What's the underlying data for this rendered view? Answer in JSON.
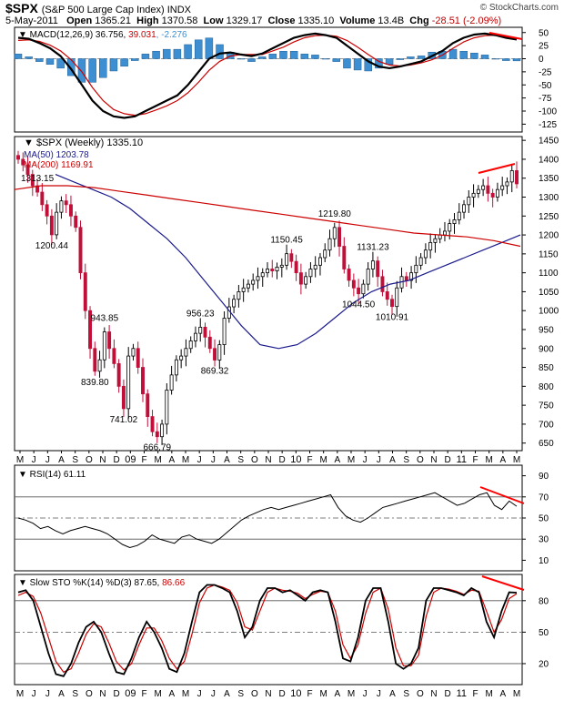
{
  "header": {
    "symbol": "$SPX",
    "name": "(S&P 500 Large Cap Index) INDX",
    "date": "5-May-2011",
    "open_label": "Open",
    "open": "1365.21",
    "high_label": "High",
    "high": "1370.58",
    "low_label": "Low",
    "low": "1329.17",
    "close_label": "Close",
    "close": "1335.10",
    "volume_label": "Volume",
    "volume": "13.4B",
    "chg_label": "Chg",
    "chg": "-28.51 (-2.09%)",
    "brand": "© StockCharts.com"
  },
  "colors": {
    "up": "#000000",
    "down": "#c0103a",
    "ma50": "#1a1a8c",
    "ma200": "#cc0000",
    "hist": "#3d8fd1",
    "trend": "#ff0000"
  },
  "chart_data": [
    {
      "type": "line",
      "panel": "macd",
      "label": "MACD(12,26,9) 36.756, 39.031, -2.276",
      "label_parts": [
        "MACD(12,26,9) 36.756,",
        "39.031",
        ", -2.276"
      ],
      "yticks": [
        50,
        25,
        0,
        -25,
        -50,
        -75,
        -100,
        -125
      ],
      "ylim": [
        -140,
        60
      ],
      "series": [
        {
          "name": "MACD",
          "values": [
            40,
            38,
            30,
            20,
            5,
            -20,
            -50,
            -80,
            -100,
            -110,
            -113,
            -110,
            -100,
            -90,
            -80,
            -70,
            -50,
            -25,
            0,
            10,
            12,
            8,
            5,
            10,
            20,
            30,
            40,
            45,
            48,
            45,
            40,
            25,
            10,
            -5,
            -15,
            -18,
            -15,
            -10,
            -5,
            5,
            15,
            30,
            40,
            46,
            48,
            45,
            40,
            36.756
          ]
        },
        {
          "name": "Signal",
          "values": [
            35,
            36,
            33,
            26,
            15,
            -2,
            -25,
            -55,
            -80,
            -97,
            -105,
            -108,
            -105,
            -98,
            -90,
            -80,
            -65,
            -45,
            -22,
            -5,
            5,
            8,
            8,
            8,
            15,
            22,
            32,
            40,
            44,
            45,
            43,
            35,
            22,
            8,
            -5,
            -12,
            -14,
            -12,
            -8,
            -2,
            7,
            20,
            32,
            40,
            44,
            45,
            42,
            39.031
          ]
        }
      ]
    },
    {
      "type": "candlestick",
      "panel": "price",
      "label": "$SPX (Weekly) 1335.10",
      "ma_labels": [
        "MA(50) 1203.78",
        "MA(200) 1169.91"
      ],
      "yticks": [
        1450,
        1400,
        1350,
        1300,
        1250,
        1200,
        1150,
        1100,
        1050,
        1000,
        950,
        900,
        850,
        800,
        750,
        700,
        650
      ],
      "ylim": [
        630,
        1460
      ],
      "xticks": [
        "M",
        "J",
        "J",
        "A",
        "S",
        "O",
        "N",
        "D",
        "09",
        "F",
        "M",
        "A",
        "M",
        "J",
        "J",
        "A",
        "S",
        "O",
        "N",
        "D",
        "10",
        "F",
        "M",
        "A",
        "M",
        "J",
        "J",
        "A",
        "S",
        "O",
        "N",
        "D",
        "11",
        "F",
        "M",
        "A",
        "M"
      ],
      "close_path": [
        1400,
        1385,
        1360,
        1330,
        1313.15,
        1280,
        1250,
        1200.44,
        1260,
        1290,
        1280,
        1250,
        1220,
        1100,
        1000,
        900,
        839.8,
        870,
        943.85,
        900,
        860,
        800,
        741.02,
        880,
        900,
        850,
        780,
        720,
        680,
        666.79,
        700,
        790,
        830,
        870,
        880,
        900,
        920,
        940,
        956.23,
        930,
        900,
        869.32,
        910,
        980,
        1010,
        1030,
        1050,
        1060,
        1070,
        1080,
        1090,
        1100,
        1110,
        1105,
        1115,
        1120,
        1150.45,
        1130,
        1100,
        1070,
        1090,
        1110,
        1120,
        1140,
        1160,
        1190,
        1219.8,
        1170,
        1110,
        1080,
        1060,
        1044.5,
        1070,
        1110,
        1131.23,
        1090,
        1050,
        1030,
        1010.91,
        1060,
        1090,
        1080,
        1100,
        1120,
        1140,
        1160,
        1180,
        1190,
        1200,
        1210,
        1230,
        1240,
        1260,
        1280,
        1300,
        1310,
        1320,
        1330,
        1310,
        1300,
        1320,
        1330,
        1340,
        1370,
        1335.1
      ],
      "annotations": [
        {
          "text": "1313.15",
          "x": 4,
          "y": 1313.15,
          "pos": "above"
        },
        {
          "text": "1200.44",
          "x": 7,
          "y": 1200.44,
          "pos": "below"
        },
        {
          "text": "839.80",
          "x": 16,
          "y": 839.8,
          "pos": "below"
        },
        {
          "text": "943.85",
          "x": 18,
          "y": 943.85,
          "pos": "above"
        },
        {
          "text": "741.02",
          "x": 22,
          "y": 741.02,
          "pos": "below"
        },
        {
          "text": "666.79",
          "x": 29,
          "y": 666.79,
          "pos": "below"
        },
        {
          "text": "956.23",
          "x": 38,
          "y": 956.23,
          "pos": "above"
        },
        {
          "text": "869.32",
          "x": 41,
          "y": 869.32,
          "pos": "below"
        },
        {
          "text": "1150.45",
          "x": 56,
          "y": 1150.45,
          "pos": "above"
        },
        {
          "text": "1219.80",
          "x": 66,
          "y": 1219.8,
          "pos": "above"
        },
        {
          "text": "1044.50",
          "x": 71,
          "y": 1044.5,
          "pos": "below"
        },
        {
          "text": "1131.23",
          "x": 74,
          "y": 1131.23,
          "pos": "above"
        },
        {
          "text": "1010.91",
          "x": 78,
          "y": 1010.91,
          "pos": "below"
        }
      ],
      "ma50": [
        1360,
        1340,
        1320,
        1300,
        1270,
        1230,
        1190,
        1140,
        1080,
        1020,
        960,
        910,
        900,
        910,
        940,
        980,
        1020,
        1050,
        1070,
        1080,
        1100,
        1120,
        1140,
        1160,
        1180,
        1200
      ],
      "ma200": [
        1320,
        1330,
        1330,
        1325,
        1315,
        1305,
        1295,
        1285,
        1275,
        1265,
        1255,
        1245,
        1235,
        1225,
        1215,
        1205,
        1200,
        1195,
        1185,
        1170
      ]
    },
    {
      "type": "line",
      "panel": "rsi",
      "label": "RSI(14) 61.11",
      "yticks": [
        90,
        70,
        50,
        30,
        10
      ],
      "ylim": [
        0,
        100
      ],
      "series": [
        {
          "name": "RSI",
          "values": [
            50,
            48,
            45,
            40,
            42,
            38,
            35,
            38,
            40,
            42,
            40,
            38,
            35,
            30,
            25,
            22,
            24,
            28,
            34,
            30,
            28,
            26,
            32,
            34,
            30,
            28,
            26,
            30,
            36,
            42,
            48,
            52,
            55,
            58,
            60,
            58,
            60,
            62,
            64,
            66,
            68,
            70,
            72,
            60,
            52,
            48,
            46,
            50,
            55,
            60,
            62,
            64,
            66,
            68,
            70,
            72,
            74,
            70,
            66,
            62,
            64,
            68,
            72,
            74,
            62,
            58,
            66,
            61.11
          ]
        }
      ]
    },
    {
      "type": "line",
      "panel": "sto",
      "label": "Slow STO %K(14) %D(3) 87.65, 86.66",
      "label_parts": [
        "Slow STO %K(14) %D(3) 87.65,",
        "86.66"
      ],
      "yticks": [
        80,
        50,
        20
      ],
      "ylim": [
        0,
        105
      ],
      "series": [
        {
          "name": "%K",
          "values": [
            88,
            90,
            80,
            55,
            30,
            10,
            8,
            20,
            40,
            55,
            60,
            50,
            30,
            12,
            10,
            25,
            45,
            60,
            50,
            35,
            15,
            12,
            30,
            60,
            88,
            95,
            95,
            92,
            88,
            70,
            45,
            55,
            80,
            92,
            92,
            88,
            90,
            85,
            80,
            88,
            90,
            88,
            60,
            25,
            22,
            45,
            80,
            92,
            92,
            60,
            20,
            15,
            20,
            35,
            80,
            92,
            92,
            90,
            88,
            85,
            92,
            88,
            60,
            45,
            70,
            88,
            87.65
          ]
        },
        {
          "name": "%D",
          "values": [
            85,
            88,
            84,
            68,
            45,
            22,
            12,
            15,
            30,
            48,
            58,
            55,
            40,
            22,
            14,
            20,
            38,
            54,
            54,
            42,
            25,
            15,
            22,
            48,
            78,
            92,
            95,
            93,
            90,
            78,
            55,
            52,
            70,
            88,
            92,
            90,
            89,
            87,
            82,
            86,
            89,
            88,
            70,
            38,
            25,
            38,
            68,
            88,
            92,
            72,
            35,
            18,
            18,
            28,
            65,
            88,
            92,
            91,
            89,
            86,
            90,
            89,
            70,
            50,
            62,
            82,
            86.66
          ]
        }
      ]
    }
  ]
}
